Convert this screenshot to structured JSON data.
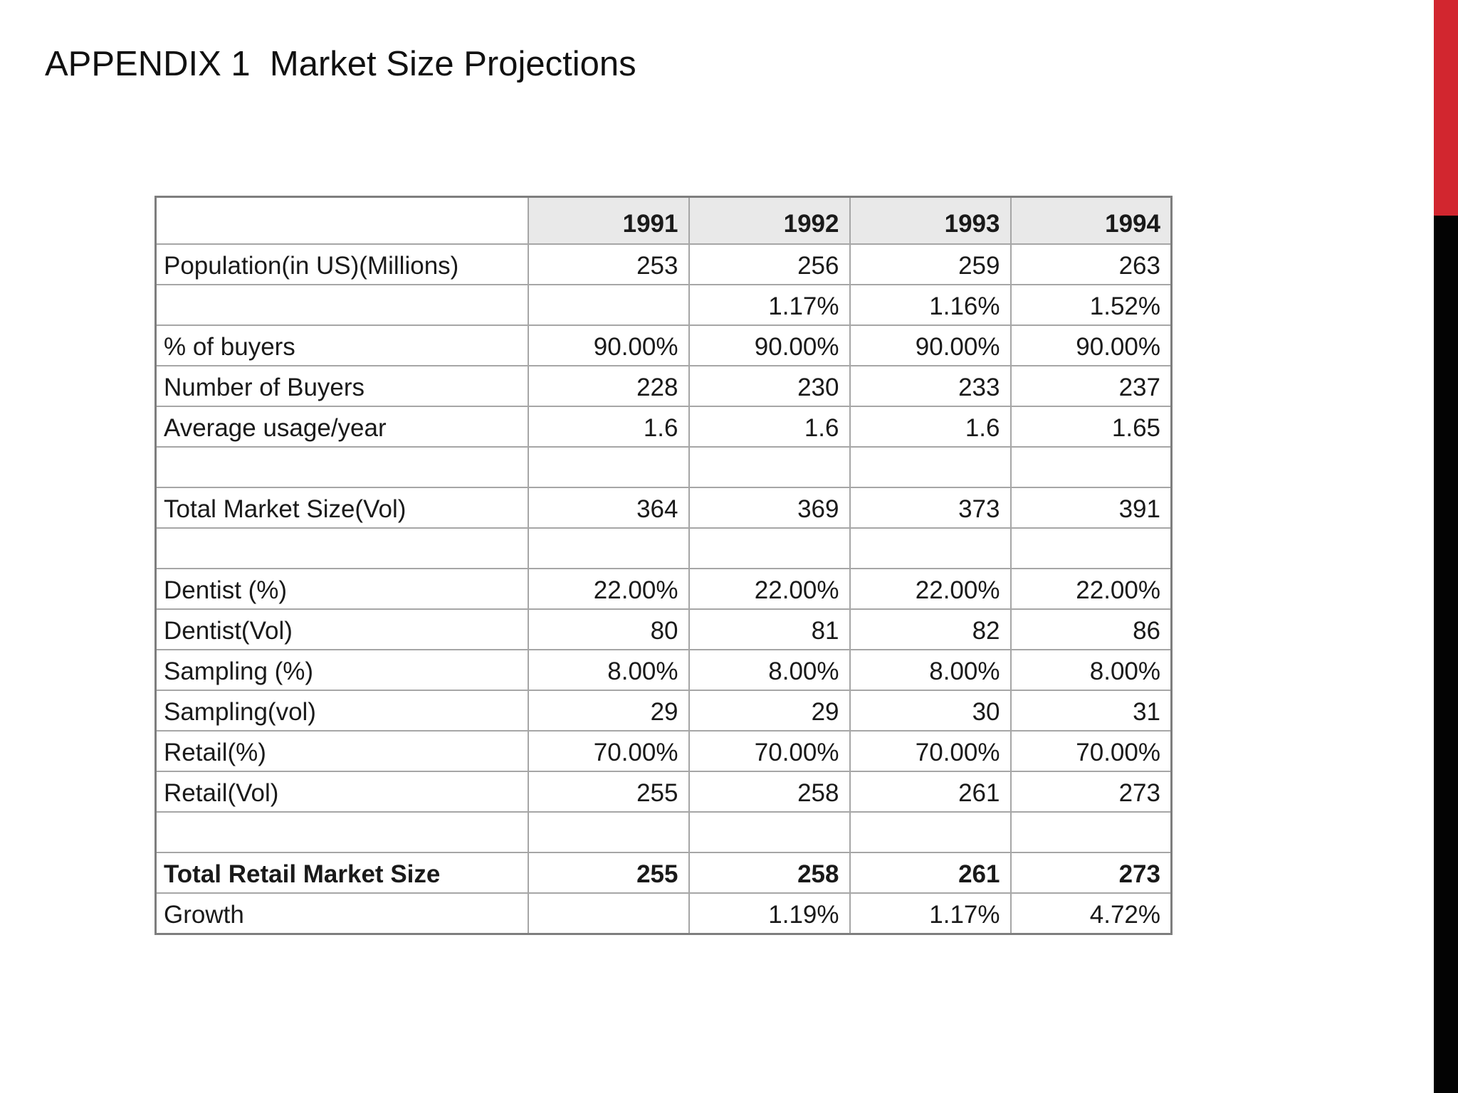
{
  "title": "APPENDIX 1  Market Size Projections",
  "accent": {
    "red": "#D2262F",
    "black": "#030303"
  },
  "chart_data": {
    "type": "table",
    "title": "Market Size Projections",
    "columns": [
      "",
      "1991",
      "1992",
      "1993",
      "1994"
    ],
    "rows": [
      {
        "label": "Population(in US)(Millions)",
        "values": [
          "253",
          "256",
          "259",
          "263"
        ],
        "bold": false
      },
      {
        "label": "",
        "values": [
          "",
          "1.17%",
          "1.16%",
          "1.52%"
        ],
        "bold": false
      },
      {
        "label": "% of buyers",
        "values": [
          "90.00%",
          "90.00%",
          "90.00%",
          "90.00%"
        ],
        "bold": false
      },
      {
        "label": "Number of Buyers",
        "values": [
          "228",
          "230",
          "233",
          "237"
        ],
        "bold": false
      },
      {
        "label": "Average usage/year",
        "values": [
          "1.6",
          "1.6",
          "1.6",
          "1.65"
        ],
        "bold": false
      },
      {
        "label": "",
        "values": [
          "",
          "",
          "",
          ""
        ],
        "bold": false
      },
      {
        "label": "Total Market Size(Vol)",
        "values": [
          "364",
          "369",
          "373",
          "391"
        ],
        "bold": false
      },
      {
        "label": "",
        "values": [
          "",
          "",
          "",
          ""
        ],
        "bold": false
      },
      {
        "label": "Dentist (%)",
        "values": [
          "22.00%",
          "22.00%",
          "22.00%",
          "22.00%"
        ],
        "bold": false
      },
      {
        "label": "Dentist(Vol)",
        "values": [
          "80",
          "81",
          "82",
          "86"
        ],
        "bold": false
      },
      {
        "label": "Sampling (%)",
        "values": [
          "8.00%",
          "8.00%",
          "8.00%",
          "8.00%"
        ],
        "bold": false
      },
      {
        "label": "Sampling(vol)",
        "values": [
          "29",
          "29",
          "30",
          "31"
        ],
        "bold": false
      },
      {
        "label": "Retail(%)",
        "values": [
          "70.00%",
          "70.00%",
          "70.00%",
          "70.00%"
        ],
        "bold": false
      },
      {
        "label": "Retail(Vol)",
        "values": [
          "255",
          "258",
          "261",
          "273"
        ],
        "bold": false
      },
      {
        "label": "",
        "values": [
          "",
          "",
          "",
          ""
        ],
        "bold": false
      },
      {
        "label": "Total Retail Market Size",
        "values": [
          "255",
          "258",
          "261",
          "273"
        ],
        "bold": true
      },
      {
        "label": "Growth",
        "values": [
          "",
          "1.19%",
          "1.17%",
          "4.72%"
        ],
        "bold": false
      }
    ]
  }
}
